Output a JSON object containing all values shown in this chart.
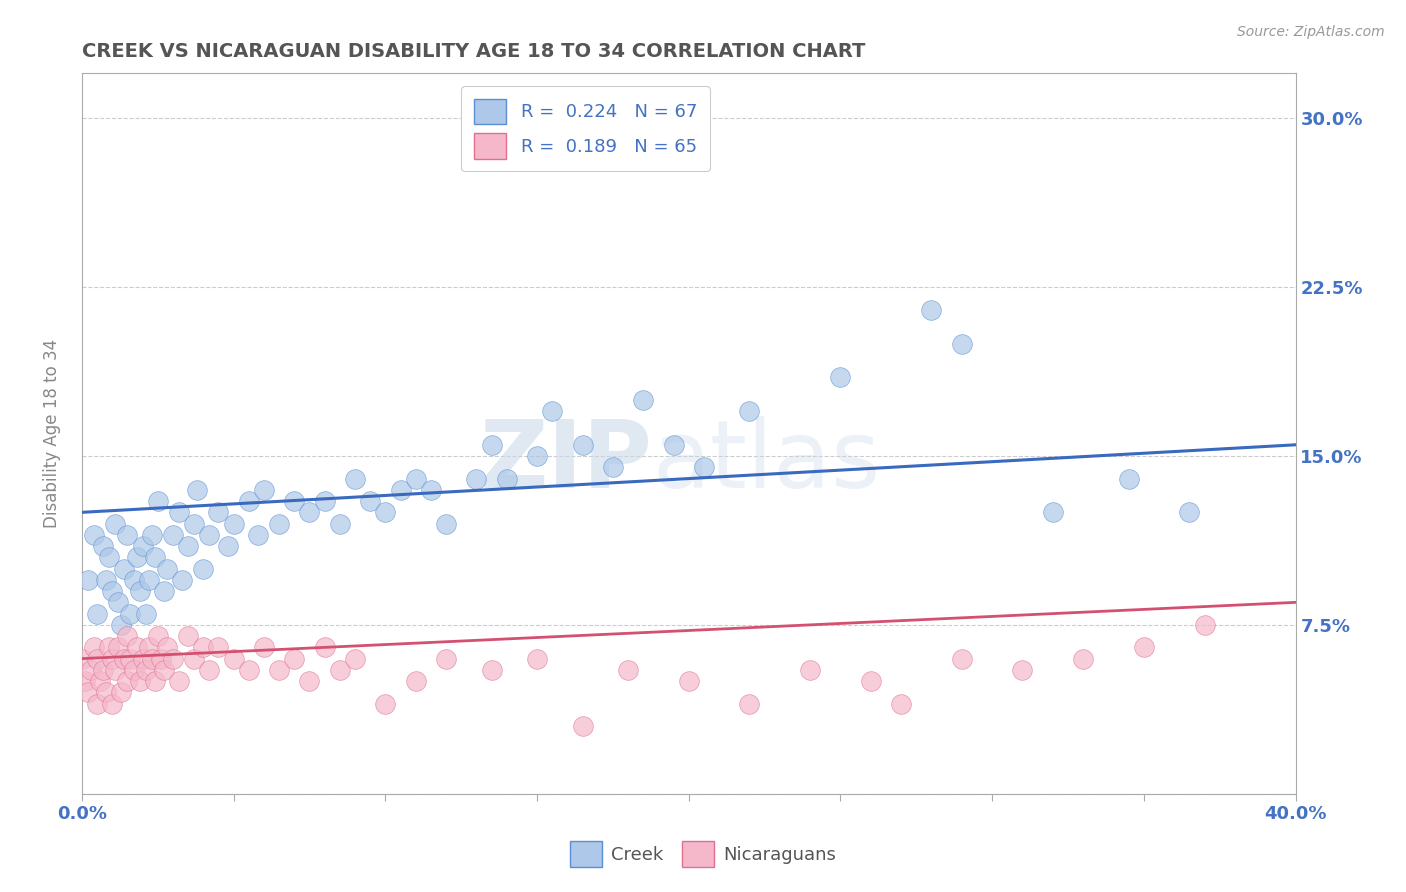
{
  "title": "CREEK VS NICARAGUAN DISABILITY AGE 18 TO 34 CORRELATION CHART",
  "source_text": "Source: ZipAtlas.com",
  "ylabel": "Disability Age 18 to 34",
  "xlim": [
    0.0,
    0.4
  ],
  "ylim": [
    0.0,
    0.32
  ],
  "xticks": [
    0.0,
    0.05,
    0.1,
    0.15,
    0.2,
    0.25,
    0.3,
    0.35,
    0.4
  ],
  "ytick_positions": [
    0.0,
    0.075,
    0.15,
    0.225,
    0.3
  ],
  "yticklabels": [
    "",
    "7.5%",
    "15.0%",
    "22.5%",
    "30.0%"
  ],
  "creek_R": 0.224,
  "creek_N": 67,
  "nicaraguan_R": 0.189,
  "nicaraguan_N": 65,
  "creek_color": "#adc8e8",
  "creek_edge_color": "#5a8fd4",
  "creek_line_color": "#3a6abf",
  "nicaraguan_color": "#f5b8cb",
  "nicaraguan_edge_color": "#e07090",
  "nicaraguan_line_color": "#d45070",
  "background_color": "#ffffff",
  "grid_color": "#cccccc",
  "title_color": "#555555",
  "axis_label_color": "#4472c4",
  "watermark_color": "#dce8f0",
  "creek_x": [
    0.002,
    0.004,
    0.005,
    0.007,
    0.008,
    0.009,
    0.01,
    0.011,
    0.012,
    0.013,
    0.014,
    0.015,
    0.016,
    0.017,
    0.018,
    0.019,
    0.02,
    0.021,
    0.022,
    0.023,
    0.024,
    0.025,
    0.027,
    0.028,
    0.03,
    0.032,
    0.033,
    0.035,
    0.037,
    0.038,
    0.04,
    0.042,
    0.045,
    0.048,
    0.05,
    0.055,
    0.058,
    0.06,
    0.065,
    0.07,
    0.075,
    0.08,
    0.085,
    0.09,
    0.095,
    0.1,
    0.105,
    0.11,
    0.115,
    0.12,
    0.13,
    0.135,
    0.14,
    0.15,
    0.155,
    0.165,
    0.175,
    0.185,
    0.195,
    0.205,
    0.22,
    0.25,
    0.28,
    0.29,
    0.32,
    0.345,
    0.365
  ],
  "creek_y": [
    0.095,
    0.115,
    0.08,
    0.11,
    0.095,
    0.105,
    0.09,
    0.12,
    0.085,
    0.075,
    0.1,
    0.115,
    0.08,
    0.095,
    0.105,
    0.09,
    0.11,
    0.08,
    0.095,
    0.115,
    0.105,
    0.13,
    0.09,
    0.1,
    0.115,
    0.125,
    0.095,
    0.11,
    0.12,
    0.135,
    0.1,
    0.115,
    0.125,
    0.11,
    0.12,
    0.13,
    0.115,
    0.135,
    0.12,
    0.13,
    0.125,
    0.13,
    0.12,
    0.14,
    0.13,
    0.125,
    0.135,
    0.14,
    0.135,
    0.12,
    0.14,
    0.155,
    0.14,
    0.15,
    0.17,
    0.155,
    0.145,
    0.175,
    0.155,
    0.145,
    0.17,
    0.185,
    0.215,
    0.2,
    0.125,
    0.14,
    0.125
  ],
  "nicaraguan_x": [
    0.0,
    0.001,
    0.002,
    0.003,
    0.004,
    0.005,
    0.005,
    0.006,
    0.007,
    0.008,
    0.009,
    0.01,
    0.01,
    0.011,
    0.012,
    0.013,
    0.014,
    0.015,
    0.015,
    0.016,
    0.017,
    0.018,
    0.019,
    0.02,
    0.021,
    0.022,
    0.023,
    0.024,
    0.025,
    0.026,
    0.027,
    0.028,
    0.03,
    0.032,
    0.035,
    0.037,
    0.04,
    0.042,
    0.045,
    0.05,
    0.055,
    0.06,
    0.065,
    0.07,
    0.075,
    0.08,
    0.085,
    0.09,
    0.1,
    0.11,
    0.12,
    0.135,
    0.15,
    0.165,
    0.18,
    0.2,
    0.22,
    0.24,
    0.26,
    0.27,
    0.29,
    0.31,
    0.33,
    0.35,
    0.37
  ],
  "nicaraguan_y": [
    0.06,
    0.05,
    0.045,
    0.055,
    0.065,
    0.04,
    0.06,
    0.05,
    0.055,
    0.045,
    0.065,
    0.04,
    0.06,
    0.055,
    0.065,
    0.045,
    0.06,
    0.05,
    0.07,
    0.06,
    0.055,
    0.065,
    0.05,
    0.06,
    0.055,
    0.065,
    0.06,
    0.05,
    0.07,
    0.06,
    0.055,
    0.065,
    0.06,
    0.05,
    0.07,
    0.06,
    0.065,
    0.055,
    0.065,
    0.06,
    0.055,
    0.065,
    0.055,
    0.06,
    0.05,
    0.065,
    0.055,
    0.06,
    0.04,
    0.05,
    0.06,
    0.055,
    0.06,
    0.03,
    0.055,
    0.05,
    0.04,
    0.055,
    0.05,
    0.04,
    0.06,
    0.055,
    0.06,
    0.065,
    0.075
  ]
}
